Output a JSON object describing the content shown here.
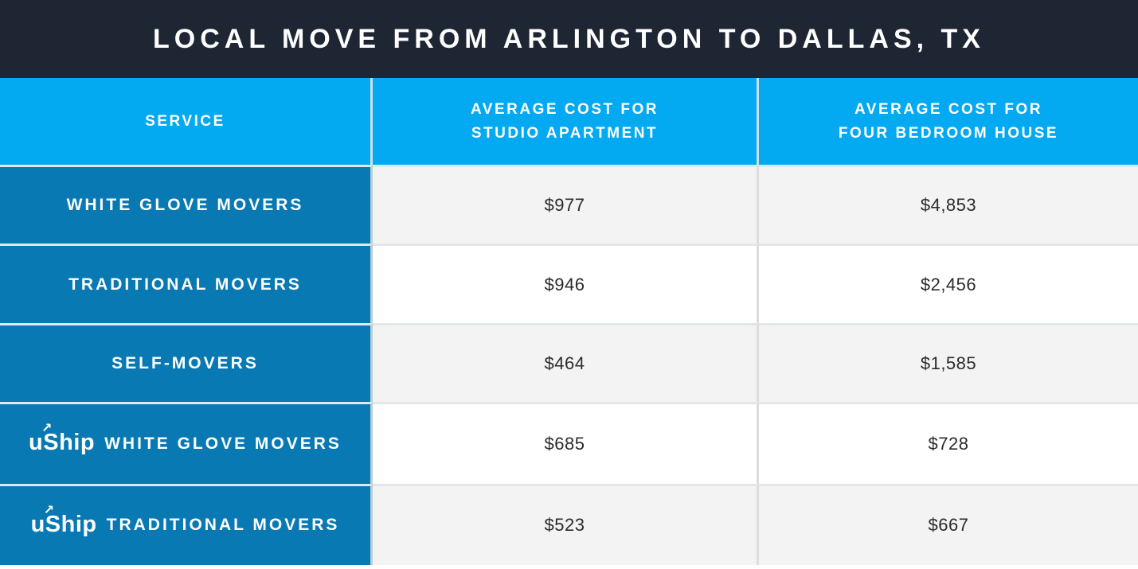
{
  "title": "LOCAL MOVE FROM ARLINGTON TO DALLAS, TX",
  "logo": {
    "text": "uShip",
    "arrow_icon": "↗"
  },
  "colors": {
    "title_bg": "#1E2533",
    "header_bg": "#03A9F1",
    "service_bg": "#0879B2",
    "row_alt_bg": "#F3F3F4",
    "row_bg": "#FFFFFF",
    "text_light": "#FFFFFF",
    "text_dark": "#2B2B2B"
  },
  "table": {
    "header": {
      "service": "SERVICE",
      "studio_line1": "AVERAGE COST FOR",
      "studio_line2": "STUDIO APARTMENT",
      "four_line1": "AVERAGE COST FOR",
      "four_line2": "FOUR BEDROOM HOUSE"
    },
    "rows": [
      {
        "service": "WHITE GLOVE MOVERS",
        "uship": false,
        "studio": "$977",
        "four_bedroom": "$4,853"
      },
      {
        "service": "TRADITIONAL MOVERS",
        "uship": false,
        "studio": "$946",
        "four_bedroom": "$2,456"
      },
      {
        "service": "SELF-MOVERS",
        "uship": false,
        "studio": "$464",
        "four_bedroom": "$1,585"
      },
      {
        "service": "WHITE GLOVE MOVERS",
        "uship": true,
        "studio": "$685",
        "four_bedroom": "$728"
      },
      {
        "service": "TRADITIONAL MOVERS",
        "uship": true,
        "studio": "$523",
        "four_bedroom": "$667"
      }
    ]
  },
  "chart_data": {
    "type": "table",
    "title": "LOCAL MOVE FROM ARLINGTON TO DALLAS, TX",
    "columns": [
      "SERVICE",
      "AVERAGE COST FOR STUDIO APARTMENT",
      "AVERAGE COST FOR FOUR BEDROOM HOUSE"
    ],
    "rows": [
      [
        "WHITE GLOVE MOVERS",
        977,
        4853
      ],
      [
        "TRADITIONAL MOVERS",
        946,
        2456
      ],
      [
        "SELF-MOVERS",
        464,
        1585
      ],
      [
        "uShip WHITE GLOVE MOVERS",
        685,
        728
      ],
      [
        "uShip TRADITIONAL MOVERS",
        523,
        667
      ]
    ]
  }
}
